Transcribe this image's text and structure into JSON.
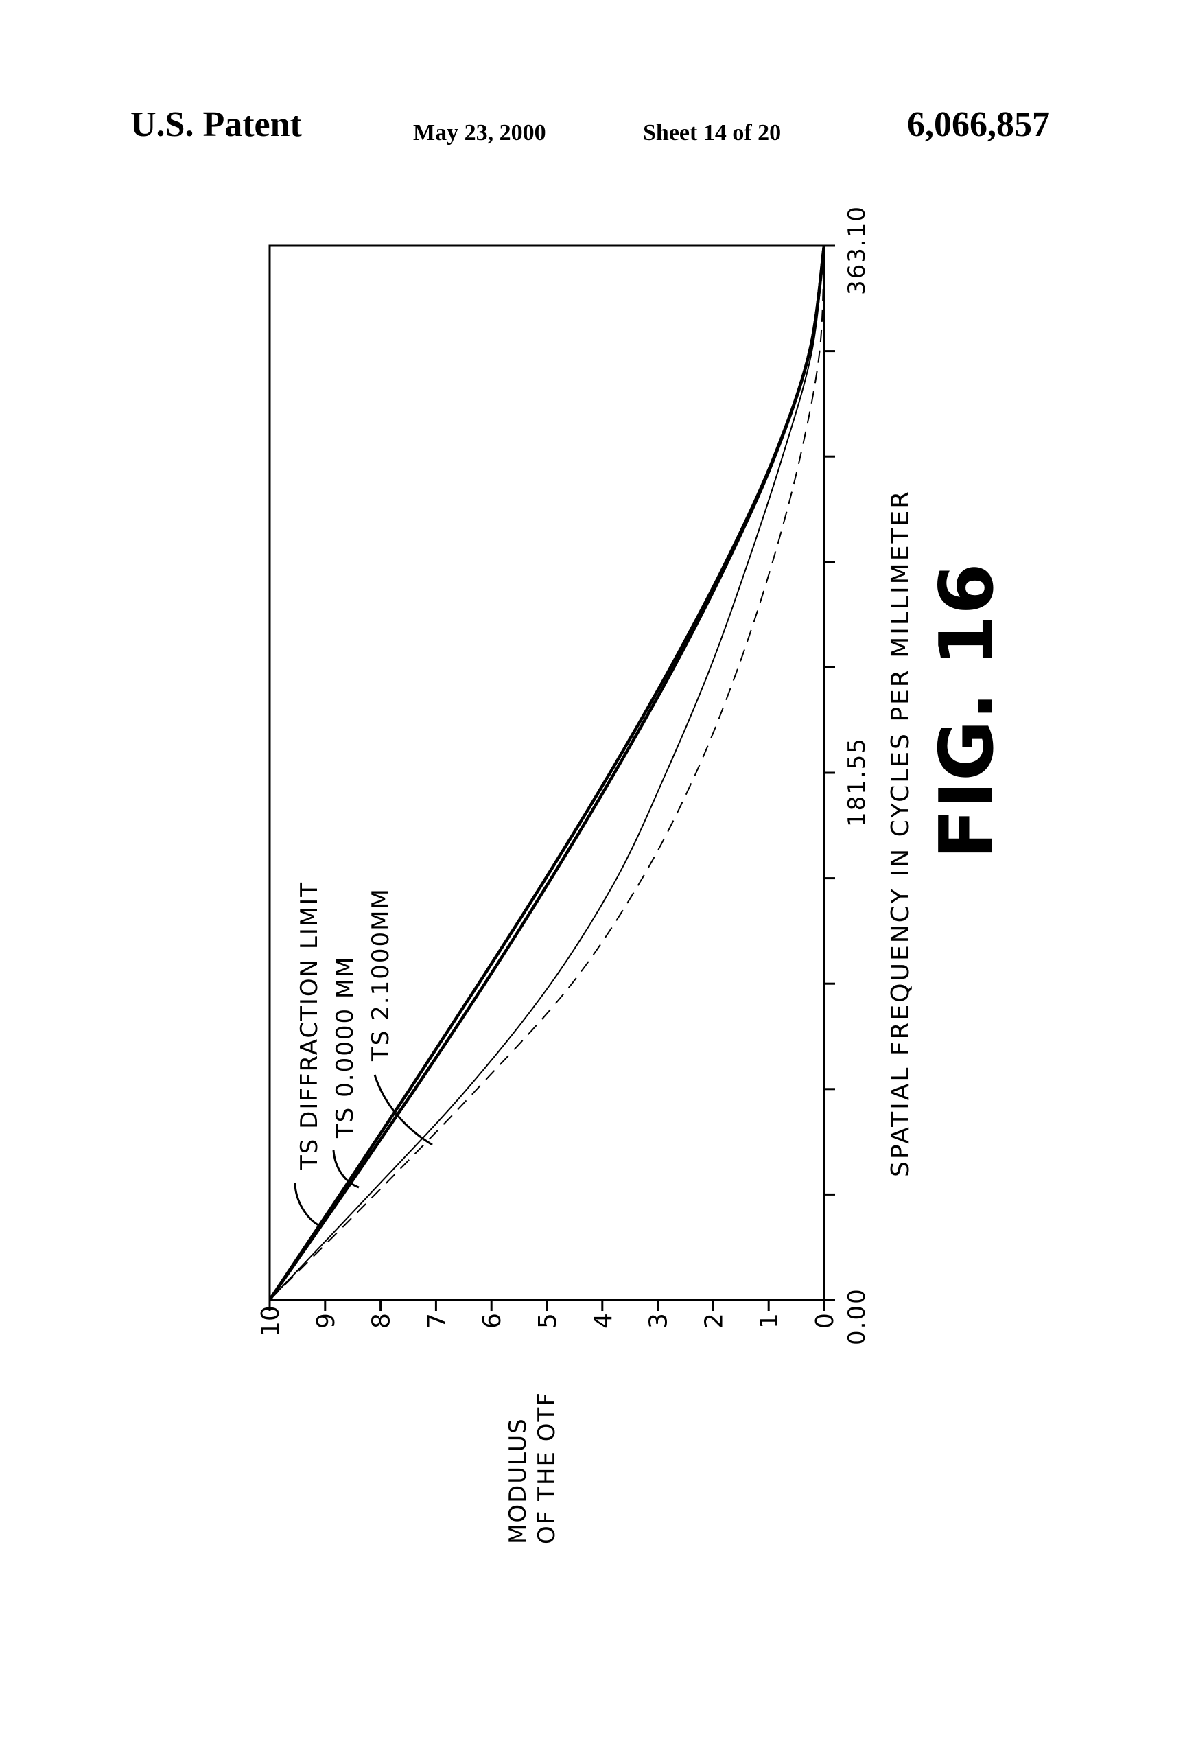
{
  "header": {
    "left": "U.S. Patent",
    "date": "May 23, 2000",
    "sheet": "Sheet 14 of 20",
    "patent_number": "6,066,857"
  },
  "figure_label": "FIG. 16",
  "chart_data": {
    "type": "line",
    "orientation": "rotated 90° counter-clockwise on the page",
    "xlabel": "SPATIAL FREQUENCY IN CYCLES PER MILLIMETER",
    "ylabel": [
      "MODULUS",
      "OF THE OTF"
    ],
    "xlim": [
      0,
      363.1
    ],
    "ylim": [
      0,
      10
    ],
    "x_tick_labels": [
      "0.00",
      "181.55",
      "363.10"
    ],
    "x_tick_count": 11,
    "y_ticks": [
      "0",
      "1",
      "2",
      "3",
      "4",
      "5",
      "6",
      "7",
      "8",
      "9",
      "10"
    ],
    "grid": false,
    "x": [
      0,
      36.31,
      72.62,
      108.93,
      145.24,
      181.55,
      217.86,
      254.17,
      290.48,
      326.79,
      363.1
    ],
    "series": [
      {
        "name": "TS DIFFRACTION LIMIT",
        "style": "solid-heavy",
        "values": [
          10,
          8.73,
          7.47,
          6.23,
          5.02,
          3.86,
          2.77,
          1.77,
          0.9,
          0.26,
          0
        ]
      },
      {
        "name": "TS 0.0000 MM",
        "style": "solid-heavy",
        "values": [
          10,
          8.68,
          7.38,
          6.12,
          4.92,
          3.78,
          2.71,
          1.74,
          0.89,
          0.26,
          0
        ]
      },
      {
        "name": "TS 2.1000MM",
        "style": "solid-thin",
        "values": [
          10,
          8.2,
          6.44,
          4.93,
          3.74,
          2.85,
          2.05,
          1.37,
          0.75,
          0.22,
          0
        ]
      },
      {
        "style": "dashed",
        "values": [
          10,
          8.1,
          6.26,
          4.55,
          3.28,
          2.31,
          1.55,
          0.93,
          0.43,
          0.08,
          0
        ]
      }
    ]
  }
}
